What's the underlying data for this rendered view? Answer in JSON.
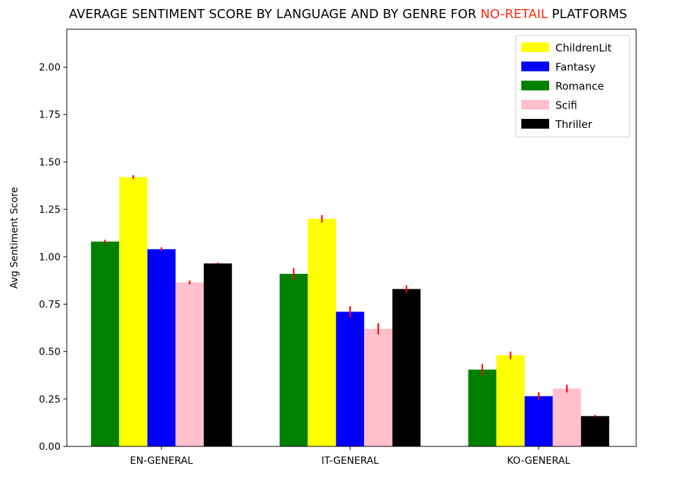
{
  "chart_data": {
    "type": "bar",
    "title_parts": [
      "AVERAGE SENTIMENT SCORE BY LANGUAGE AND BY GENRE FOR ",
      "NO-RETAIL",
      " PLATFORMS"
    ],
    "title_highlight_color": "#ff2a12",
    "categories": [
      "EN-GENERAL",
      "IT-GENERAL",
      "KO-GENERAL"
    ],
    "ylabel": "Avg Sentiment Score",
    "xlabel": "",
    "ylim": [
      0,
      2.2
    ],
    "yticks": [
      "0.00",
      "0.25",
      "0.50",
      "0.75",
      "1.00",
      "1.25",
      "1.50",
      "1.75",
      "2.00"
    ],
    "grid": false,
    "legend_position": "top-right",
    "error_bar_color": "#ff0000",
    "bar_order": [
      "Romance",
      "ChildrenLit",
      "Fantasy",
      "Scifi",
      "Thriller"
    ],
    "legend_order": [
      "ChildrenLit",
      "Fantasy",
      "Romance",
      "Scifi",
      "Thriller"
    ],
    "series": [
      {
        "name": "ChildrenLit",
        "color": "#ffff00",
        "values": [
          1.42,
          1.2,
          0.48
        ],
        "errors": [
          0.01,
          0.02,
          0.02
        ]
      },
      {
        "name": "Fantasy",
        "color": "#0000ff",
        "values": [
          1.04,
          0.71,
          0.265
        ],
        "errors": [
          0.01,
          0.03,
          0.02
        ]
      },
      {
        "name": "Romance",
        "color": "#008000",
        "values": [
          1.08,
          0.91,
          0.405
        ],
        "errors": [
          0.01,
          0.03,
          0.03
        ]
      },
      {
        "name": "Scifi",
        "color": "#ffc0cb",
        "values": [
          0.865,
          0.62,
          0.305
        ],
        "errors": [
          0.01,
          0.03,
          0.02
        ]
      },
      {
        "name": "Thriller",
        "color": "#000000",
        "values": [
          0.965,
          0.83,
          0.16
        ],
        "errors": [
          0.005,
          0.02,
          0.005
        ]
      }
    ]
  }
}
